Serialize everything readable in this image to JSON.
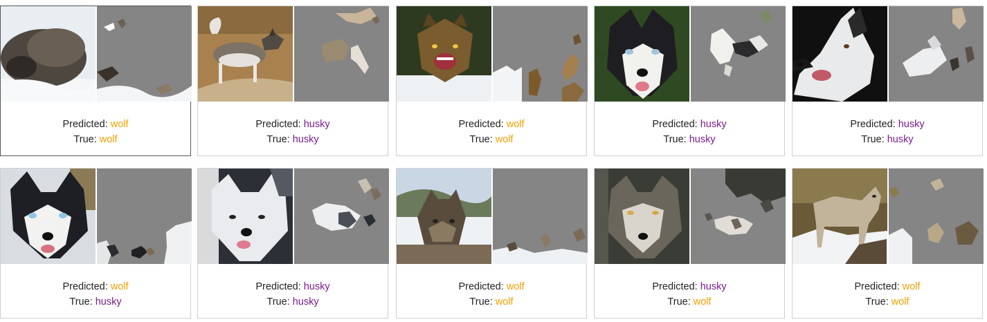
{
  "colors": {
    "wolf": "#f0a000",
    "husky": "#7b1c8f",
    "mask_gray": "#858585"
  },
  "labels": {
    "predicted": "Predicted: ",
    "true": "True: "
  },
  "cards": [
    {
      "predicted": "wolf",
      "true": "wolf",
      "photo": "wolf-sleeping-in-snow",
      "selected": true
    },
    {
      "predicted": "husky",
      "true": "husky",
      "photo": "husky-walking-on-dirt",
      "selected": false
    },
    {
      "predicted": "wolf",
      "true": "wolf",
      "photo": "wolf-snarling-in-snow",
      "selected": false
    },
    {
      "predicted": "husky",
      "true": "husky",
      "photo": "husky-face-green-bg",
      "selected": false
    },
    {
      "predicted": "husky",
      "true": "husky",
      "photo": "husky-profile-dark-bg",
      "selected": false
    },
    {
      "predicted": "wolf",
      "true": "husky",
      "photo": "husky-blue-eyes-snow",
      "selected": false
    },
    {
      "predicted": "husky",
      "true": "husky",
      "photo": "white-husky-close-up",
      "selected": false
    },
    {
      "predicted": "wolf",
      "true": "wolf",
      "photo": "wolf-lying-in-snow",
      "selected": false
    },
    {
      "predicted": "husky",
      "true": "wolf",
      "photo": "gray-wolf-forest",
      "selected": false
    },
    {
      "predicted": "wolf",
      "true": "wolf",
      "photo": "wolf-standing-on-rock",
      "selected": false
    }
  ]
}
